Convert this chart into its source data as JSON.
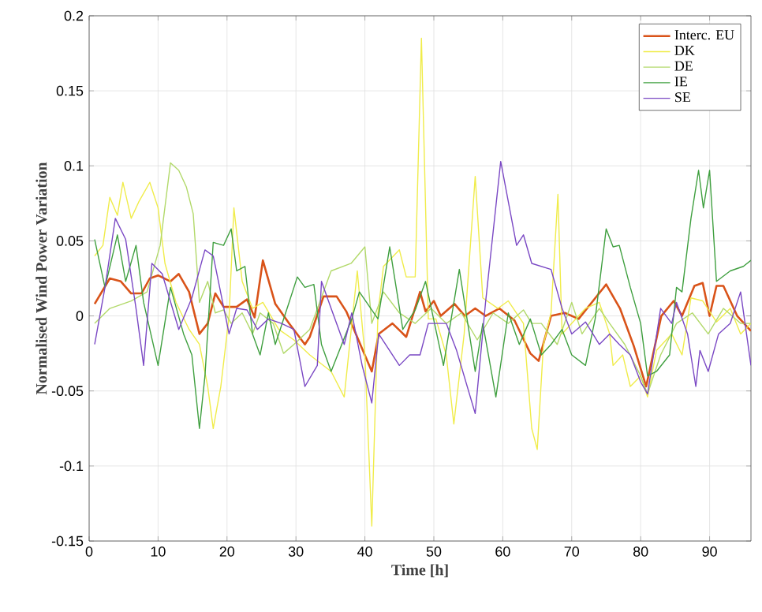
{
  "chart_data": {
    "type": "line",
    "xlabel": "Time [h]",
    "ylabel": "Normalised Wind Power Variation",
    "xlim": [
      0,
      96
    ],
    "ylim": [
      -0.15,
      0.2
    ],
    "xticks": [
      0,
      10,
      20,
      30,
      40,
      50,
      60,
      70,
      80,
      90
    ],
    "yticks": [
      -0.15,
      -0.1,
      -0.05,
      0,
      0.05,
      0.1,
      0.15,
      0.2
    ],
    "grid": true,
    "legend": "top right",
    "marker": "none",
    "line_style": "solid",
    "series": [
      {
        "name": "Interc. EU",
        "color": "#d95319",
        "x": [
          0.8,
          3,
          4.6,
          6.1,
          7.6,
          8.8,
          10,
          11.8,
          13,
          14.5,
          16,
          17.2,
          18.3,
          19.5,
          21.4,
          22.9,
          24,
          25.2,
          27,
          29,
          31.3,
          32,
          34,
          35.9,
          37.3,
          41,
          42,
          44,
          46,
          48,
          48.8,
          50,
          51,
          53,
          54.5,
          56,
          57.5,
          59.5,
          61.7,
          64,
          65.2,
          67,
          69,
          71,
          75,
          77,
          79,
          80.8,
          83,
          84.8,
          86,
          87.8,
          89,
          90,
          91,
          92,
          94,
          96
        ],
        "values": [
          0.008,
          0.025,
          0.023,
          0.015,
          0.015,
          0.025,
          0.027,
          0.023,
          0.028,
          0.016,
          -0.012,
          -0.005,
          0.015,
          0.006,
          0.006,
          0.011,
          -0.001,
          0.037,
          0.008,
          -0.005,
          -0.019,
          -0.014,
          0.013,
          0.013,
          0.003,
          -0.037,
          -0.012,
          -0.005,
          -0.014,
          0.016,
          0.003,
          0.01,
          0.0,
          0.008,
          0.0,
          0.005,
          0.0,
          0.005,
          -0.003,
          -0.025,
          -0.03,
          0.0,
          0.002,
          -0.002,
          0.021,
          0.005,
          -0.02,
          -0.047,
          0.0,
          0.01,
          0.0,
          0.02,
          0.022,
          0.0,
          0.02,
          0.02,
          0.0,
          -0.01
        ]
      },
      {
        "name": "DK",
        "color": "#f0ec4a",
        "x": [
          0.8,
          2,
          3,
          4.1,
          4.9,
          6.1,
          7.2,
          8.8,
          10,
          11,
          12.6,
          14.5,
          16,
          17.2,
          18,
          19.1,
          20.3,
          21,
          22.2,
          23.7,
          25.2,
          27.5,
          29.7,
          32,
          35.1,
          37,
          38.9,
          40,
          41,
          41.9,
          42.7,
          45,
          46,
          47.3,
          48.2,
          49.2,
          50.3,
          51.8,
          52.9,
          54.4,
          56,
          57.1,
          59.3,
          60.8,
          63,
          64.2,
          65,
          65.9,
          67,
          68,
          68.6,
          70,
          72,
          74,
          75.5,
          76,
          77.4,
          78.5,
          80,
          81,
          82.3,
          84.5,
          86,
          87.3,
          89,
          91,
          93,
          94.5,
          96
        ],
        "values": [
          0.04,
          0.047,
          0.079,
          0.067,
          0.089,
          0.065,
          0.076,
          0.089,
          0.072,
          0.035,
          0.009,
          -0.009,
          -0.019,
          -0.047,
          -0.075,
          -0.047,
          0.0,
          0.072,
          0.023,
          0.005,
          0.009,
          -0.009,
          -0.016,
          -0.026,
          -0.037,
          -0.054,
          0.03,
          -0.026,
          -0.14,
          0.002,
          0.033,
          0.044,
          0.026,
          0.026,
          0.185,
          -0.002,
          -0.002,
          -0.026,
          -0.072,
          -0.012,
          0.093,
          0.012,
          0.005,
          0.01,
          -0.005,
          -0.075,
          -0.089,
          -0.019,
          0.002,
          0.081,
          -0.012,
          -0.005,
          0.005,
          0.009,
          -0.012,
          -0.033,
          -0.026,
          -0.047,
          -0.04,
          -0.054,
          -0.023,
          -0.012,
          -0.026,
          0.012,
          0.01,
          -0.004,
          0.005,
          -0.012,
          -0.005
        ]
      },
      {
        "name": "DE",
        "color": "#b2d96a",
        "x": [
          0.8,
          3,
          6.1,
          8.4,
          10.3,
          11.8,
          13,
          14.1,
          15.1,
          16,
          17.2,
          18.3,
          19.5,
          20.6,
          22.2,
          23.7,
          24.8,
          26.7,
          28.2,
          29.7,
          32,
          35.1,
          38,
          40,
          41,
          42.7,
          45,
          47.3,
          49.6,
          51.8,
          54,
          56.3,
          58.6,
          60.8,
          63,
          64.2,
          65.6,
          67.9,
          70,
          71.5,
          74,
          75.5,
          77.7,
          80,
          81,
          82.9,
          85.2,
          87.5,
          89.8,
          92,
          94.5,
          96
        ],
        "values": [
          -0.005,
          0.005,
          0.01,
          0.016,
          0.047,
          0.102,
          0.097,
          0.086,
          0.068,
          0.009,
          0.023,
          0.002,
          0.004,
          -0.005,
          0.002,
          -0.012,
          0.002,
          -0.005,
          -0.025,
          -0.019,
          -0.009,
          0.03,
          0.035,
          0.046,
          -0.005,
          0.016,
          0.002,
          -0.005,
          0.005,
          -0.005,
          0.002,
          -0.016,
          0.002,
          -0.005,
          0.004,
          -0.005,
          -0.005,
          -0.019,
          0.009,
          -0.012,
          0.005,
          -0.005,
          -0.019,
          -0.04,
          -0.052,
          -0.026,
          -0.005,
          0.002,
          -0.012,
          0.005,
          -0.005,
          -0.005
        ]
      },
      {
        "name": "IE",
        "color": "#3f9f3f",
        "x": [
          0.8,
          2.3,
          4.1,
          5.3,
          6.8,
          7.9,
          10,
          11.8,
          13.7,
          14.9,
          16,
          16.8,
          18,
          19.5,
          20.6,
          21.4,
          22.6,
          23.7,
          24.8,
          26,
          27,
          29,
          30.2,
          31.3,
          32.6,
          33.7,
          35.1,
          38.1,
          39.2,
          41.9,
          43.6,
          45.5,
          47.3,
          48.8,
          51.4,
          53.7,
          56,
          57.1,
          59,
          60.8,
          62.4,
          64,
          65.6,
          67,
          68.6,
          70,
          72,
          73.4,
          75,
          76,
          76.9,
          78.5,
          80,
          81,
          82.3,
          84.2,
          85.2,
          86,
          87.3,
          88.4,
          89.1,
          90,
          91,
          93,
          94.9,
          96
        ],
        "values": [
          0.051,
          0.019,
          0.054,
          0.023,
          0.047,
          0.009,
          -0.033,
          0.019,
          -0.012,
          -0.026,
          -0.075,
          -0.04,
          0.049,
          0.047,
          0.058,
          0.03,
          0.033,
          -0.012,
          -0.026,
          0.002,
          -0.019,
          0.009,
          0.026,
          0.019,
          0.021,
          -0.019,
          -0.037,
          -0.002,
          0.016,
          -0.002,
          0.046,
          -0.009,
          0.004,
          0.023,
          -0.033,
          0.031,
          -0.037,
          -0.005,
          -0.054,
          0.002,
          -0.019,
          -0.002,
          -0.026,
          -0.019,
          -0.009,
          -0.026,
          -0.033,
          -0.002,
          0.058,
          0.046,
          0.047,
          0.019,
          -0.005,
          -0.04,
          -0.037,
          -0.026,
          0.019,
          0.016,
          0.065,
          0.097,
          0.072,
          0.097,
          0.023,
          0.03,
          0.033,
          0.037
        ]
      },
      {
        "name": "SE",
        "color": "#7a48c4",
        "x": [
          0.8,
          2.3,
          3.8,
          5.3,
          6.8,
          7.9,
          9.1,
          10.6,
          13,
          14.9,
          16.8,
          18,
          20.3,
          21.4,
          22.9,
          24.4,
          26,
          27.9,
          29.7,
          31.3,
          33.1,
          33.7,
          35.1,
          37,
          38.1,
          39.6,
          41,
          42,
          45,
          46.5,
          48,
          49.2,
          51.8,
          53.3,
          56,
          57.5,
          59.7,
          62,
          63,
          64.2,
          65.6,
          67,
          68.6,
          70,
          72,
          74,
          75.5,
          76.9,
          78.5,
          80,
          81,
          82.9,
          84.5,
          85.2,
          86.8,
          88,
          88.6,
          89.8,
          91.3,
          93,
          94.5,
          96
        ],
        "values": [
          -0.019,
          0.019,
          0.065,
          0.051,
          0.005,
          -0.033,
          0.035,
          0.028,
          -0.009,
          0.012,
          0.044,
          0.04,
          -0.012,
          0.005,
          0.004,
          -0.009,
          -0.002,
          -0.005,
          -0.009,
          -0.047,
          -0.033,
          0.023,
          0.005,
          -0.019,
          0.002,
          -0.033,
          -0.058,
          -0.012,
          -0.033,
          -0.026,
          -0.026,
          -0.005,
          -0.005,
          -0.023,
          -0.065,
          0.009,
          0.103,
          0.047,
          0.054,
          0.035,
          0.033,
          0.031,
          0.005,
          -0.012,
          -0.004,
          -0.019,
          -0.012,
          -0.019,
          -0.026,
          -0.044,
          -0.052,
          0.005,
          -0.005,
          0.009,
          -0.012,
          -0.047,
          -0.023,
          -0.037,
          -0.012,
          -0.005,
          0.016,
          -0.033
        ]
      }
    ]
  }
}
